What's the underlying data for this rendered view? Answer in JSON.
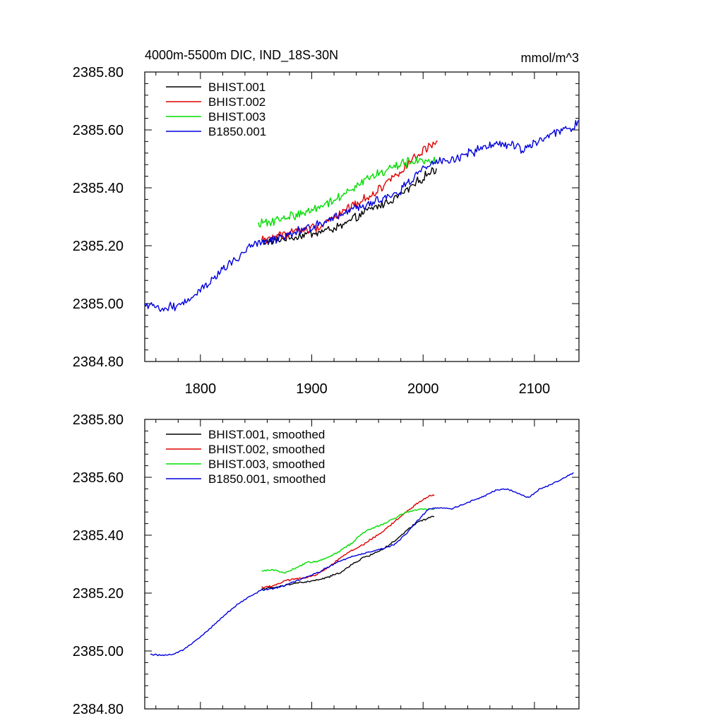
{
  "colors": {
    "black": "#000000",
    "red": "#e00000",
    "green": "#00dd00",
    "blue": "#0000dd"
  },
  "chart_data": [
    {
      "type": "line",
      "title": "4000m-5500m DIC, IND_18S-30N",
      "units": "mmol/m^3",
      "xlim": [
        1750,
        2140
      ],
      "ylim": [
        2384.8,
        2385.8
      ],
      "xticks": [
        1800,
        1900,
        2000,
        2100
      ],
      "xtick_labels": [
        "1800",
        "1900",
        "2000",
        "2100"
      ],
      "yticks": [
        2384.8,
        2385.0,
        2385.2,
        2385.4,
        2385.6,
        2385.8
      ],
      "ytick_labels": [
        "2384.80",
        "2385.00",
        "2385.20",
        "2385.40",
        "2385.60",
        "2385.80"
      ],
      "legend_position": "top-left",
      "series": [
        {
          "name": "BHIST.001",
          "color": "#000000",
          "noise": 0.012,
          "x": [
            1855,
            1865,
            1875,
            1885,
            1895,
            1905,
            1915,
            1925,
            1935,
            1945,
            1955,
            1965,
            1975,
            1985,
            1995,
            2005,
            2012
          ],
          "y": [
            2385.215,
            2385.215,
            2385.225,
            2385.23,
            2385.24,
            2385.245,
            2385.255,
            2385.265,
            2385.285,
            2385.31,
            2385.33,
            2385.345,
            2385.365,
            2385.39,
            2385.42,
            2385.45,
            2385.465
          ]
        },
        {
          "name": "BHIST.002",
          "color": "#e00000",
          "noise": 0.013,
          "x": [
            1855,
            1865,
            1875,
            1885,
            1895,
            1905,
            1915,
            1925,
            1935,
            1945,
            1955,
            1965,
            1975,
            1985,
            1995,
            2005,
            2013
          ],
          "y": [
            2385.22,
            2385.23,
            2385.24,
            2385.25,
            2385.255,
            2385.265,
            2385.29,
            2385.31,
            2385.335,
            2385.355,
            2385.38,
            2385.41,
            2385.445,
            2385.475,
            2385.51,
            2385.54,
            2385.545
          ]
        },
        {
          "name": "BHIST.003",
          "color": "#00dd00",
          "noise": 0.013,
          "x": [
            1852,
            1862,
            1872,
            1882,
            1892,
            1902,
            1912,
            1922,
            1932,
            1942,
            1952,
            1962,
            1972,
            1982,
            1992,
            2002,
            2012
          ],
          "y": [
            2385.27,
            2385.285,
            2385.29,
            2385.305,
            2385.31,
            2385.33,
            2385.345,
            2385.36,
            2385.39,
            2385.415,
            2385.435,
            2385.45,
            2385.47,
            2385.485,
            2385.49,
            2385.495,
            2385.49
          ]
        },
        {
          "name": "B1850.001",
          "color": "#0000dd",
          "noise": 0.013,
          "x": [
            1750,
            1760,
            1770,
            1780,
            1790,
            1800,
            1810,
            1820,
            1830,
            1840,
            1850,
            1860,
            1870,
            1880,
            1890,
            1900,
            1910,
            1920,
            1930,
            1940,
            1950,
            1960,
            1970,
            1980,
            1990,
            2000,
            2010,
            2020,
            2030,
            2040,
            2050,
            2060,
            2070,
            2080,
            2090,
            2100,
            2110,
            2120,
            2130,
            2140
          ],
          "y": [
            2384.99,
            2384.985,
            2384.985,
            2384.995,
            2385.02,
            2385.05,
            2385.08,
            2385.115,
            2385.15,
            2385.18,
            2385.205,
            2385.215,
            2385.225,
            2385.24,
            2385.255,
            2385.265,
            2385.28,
            2385.3,
            2385.315,
            2385.33,
            2385.34,
            2385.355,
            2385.37,
            2385.39,
            2385.43,
            2385.47,
            2385.49,
            2385.49,
            2385.5,
            2385.515,
            2385.53,
            2385.545,
            2385.555,
            2385.545,
            2385.535,
            2385.555,
            2385.575,
            2385.59,
            2385.605,
            2385.625
          ]
        }
      ]
    },
    {
      "type": "line",
      "xlim": [
        1750,
        2140
      ],
      "ylim": [
        2384.8,
        2385.8
      ],
      "xticks": [
        1800,
        1900,
        2000,
        2100
      ],
      "yticks": [
        2384.8,
        2385.0,
        2385.2,
        2385.4,
        2385.6,
        2385.8
      ],
      "ytick_labels": [
        "2384.80",
        "2385.00",
        "2385.20",
        "2385.40",
        "2385.60",
        "2385.80"
      ],
      "legend_position": "top-left",
      "series": [
        {
          "name": "BHIST.001, smoothed",
          "color": "#000000",
          "noise": 0.0025,
          "x": [
            1855,
            1865,
            1875,
            1885,
            1895,
            1905,
            1915,
            1925,
            1935,
            1945,
            1955,
            1965,
            1975,
            1985,
            1995,
            2005,
            2010
          ],
          "y": [
            2385.215,
            2385.218,
            2385.225,
            2385.235,
            2385.238,
            2385.245,
            2385.255,
            2385.27,
            2385.295,
            2385.32,
            2385.335,
            2385.355,
            2385.38,
            2385.415,
            2385.445,
            2385.46,
            2385.465
          ]
        },
        {
          "name": "BHIST.002, smoothed",
          "color": "#e00000",
          "noise": 0.0025,
          "x": [
            1855,
            1865,
            1875,
            1885,
            1895,
            1905,
            1915,
            1925,
            1935,
            1945,
            1955,
            1965,
            1975,
            1985,
            1995,
            2005,
            2010
          ],
          "y": [
            2385.22,
            2385.225,
            2385.24,
            2385.25,
            2385.252,
            2385.265,
            2385.29,
            2385.32,
            2385.345,
            2385.365,
            2385.39,
            2385.415,
            2385.45,
            2385.48,
            2385.51,
            2385.535,
            2385.538
          ]
        },
        {
          "name": "BHIST.003, smoothed",
          "color": "#00dd00",
          "noise": 0.0025,
          "x": [
            1855,
            1865,
            1875,
            1885,
            1895,
            1905,
            1915,
            1925,
            1935,
            1945,
            1955,
            1965,
            1975,
            1985,
            1995,
            2005,
            2010
          ],
          "y": [
            2385.275,
            2385.282,
            2385.27,
            2385.285,
            2385.305,
            2385.31,
            2385.325,
            2385.345,
            2385.37,
            2385.405,
            2385.425,
            2385.44,
            2385.46,
            2385.48,
            2385.49,
            2385.49,
            2385.49
          ]
        },
        {
          "name": "B1850.001, smoothed",
          "color": "#0000dd",
          "noise": 0.002,
          "x": [
            1755,
            1765,
            1775,
            1785,
            1795,
            1805,
            1815,
            1825,
            1835,
            1845,
            1855,
            1865,
            1875,
            1885,
            1895,
            1905,
            1915,
            1925,
            1935,
            1945,
            1955,
            1965,
            1975,
            1985,
            1995,
            2005,
            2015,
            2025,
            2035,
            2045,
            2055,
            2065,
            2075,
            2085,
            2095,
            2105,
            2115,
            2125,
            2135
          ],
          "y": [
            2384.988,
            2384.985,
            2384.988,
            2385.005,
            2385.035,
            2385.065,
            2385.1,
            2385.135,
            2385.165,
            2385.19,
            2385.21,
            2385.215,
            2385.225,
            2385.24,
            2385.255,
            2385.27,
            2385.29,
            2385.31,
            2385.325,
            2385.335,
            2385.345,
            2385.355,
            2385.37,
            2385.405,
            2385.45,
            2385.49,
            2385.495,
            2385.49,
            2385.505,
            2385.52,
            2385.535,
            2385.555,
            2385.56,
            2385.545,
            2385.53,
            2385.56,
            2385.575,
            2385.595,
            2385.615
          ]
        }
      ]
    }
  ]
}
